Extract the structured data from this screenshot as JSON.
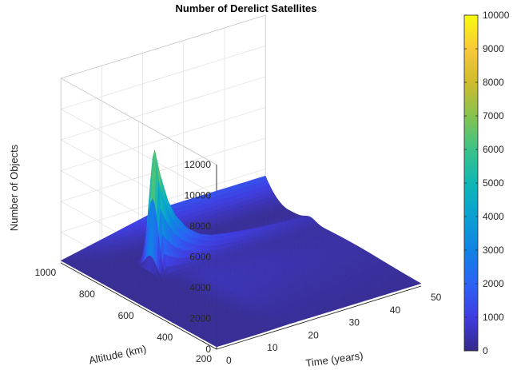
{
  "chart_data": {
    "type": "surface",
    "title": "Number of Derelict Satellites",
    "xlabel": "Time (years)",
    "ylabel": "Altitude (km)",
    "zlabel": "Number of Objects",
    "x_ticks": [
      0,
      10,
      20,
      30,
      40,
      50
    ],
    "y_ticks": [
      200,
      400,
      600,
      800,
      1000
    ],
    "z_ticks": [
      0,
      2000,
      4000,
      6000,
      8000,
      10000,
      12000
    ],
    "colorbar_ticks": [
      0,
      1000,
      2000,
      3000,
      4000,
      5000,
      6000,
      7000,
      8000,
      9000,
      10000
    ],
    "xlim": [
      0,
      50
    ],
    "ylim": [
      200,
      1000
    ],
    "zlim": [
      0,
      12000
    ],
    "clim": [
      0,
      10000
    ],
    "colormap": "parula",
    "grid": true,
    "colorbar": "right",
    "surface_extent": {
      "time": [
        0,
        50
      ],
      "altitude": [
        200,
        1000
      ]
    },
    "peak": {
      "time": 12,
      "altitude": 770,
      "value": 7800
    },
    "ridge_profile": {
      "time": [
        12,
        13,
        15,
        17,
        20,
        23,
        26,
        30,
        35,
        40,
        45,
        50
      ],
      "value": [
        7800,
        6400,
        4300,
        3000,
        1900,
        1300,
        1000,
        800,
        620,
        480,
        360,
        280
      ]
    },
    "background_level": 150,
    "trailing_edge_level": 1400
  }
}
